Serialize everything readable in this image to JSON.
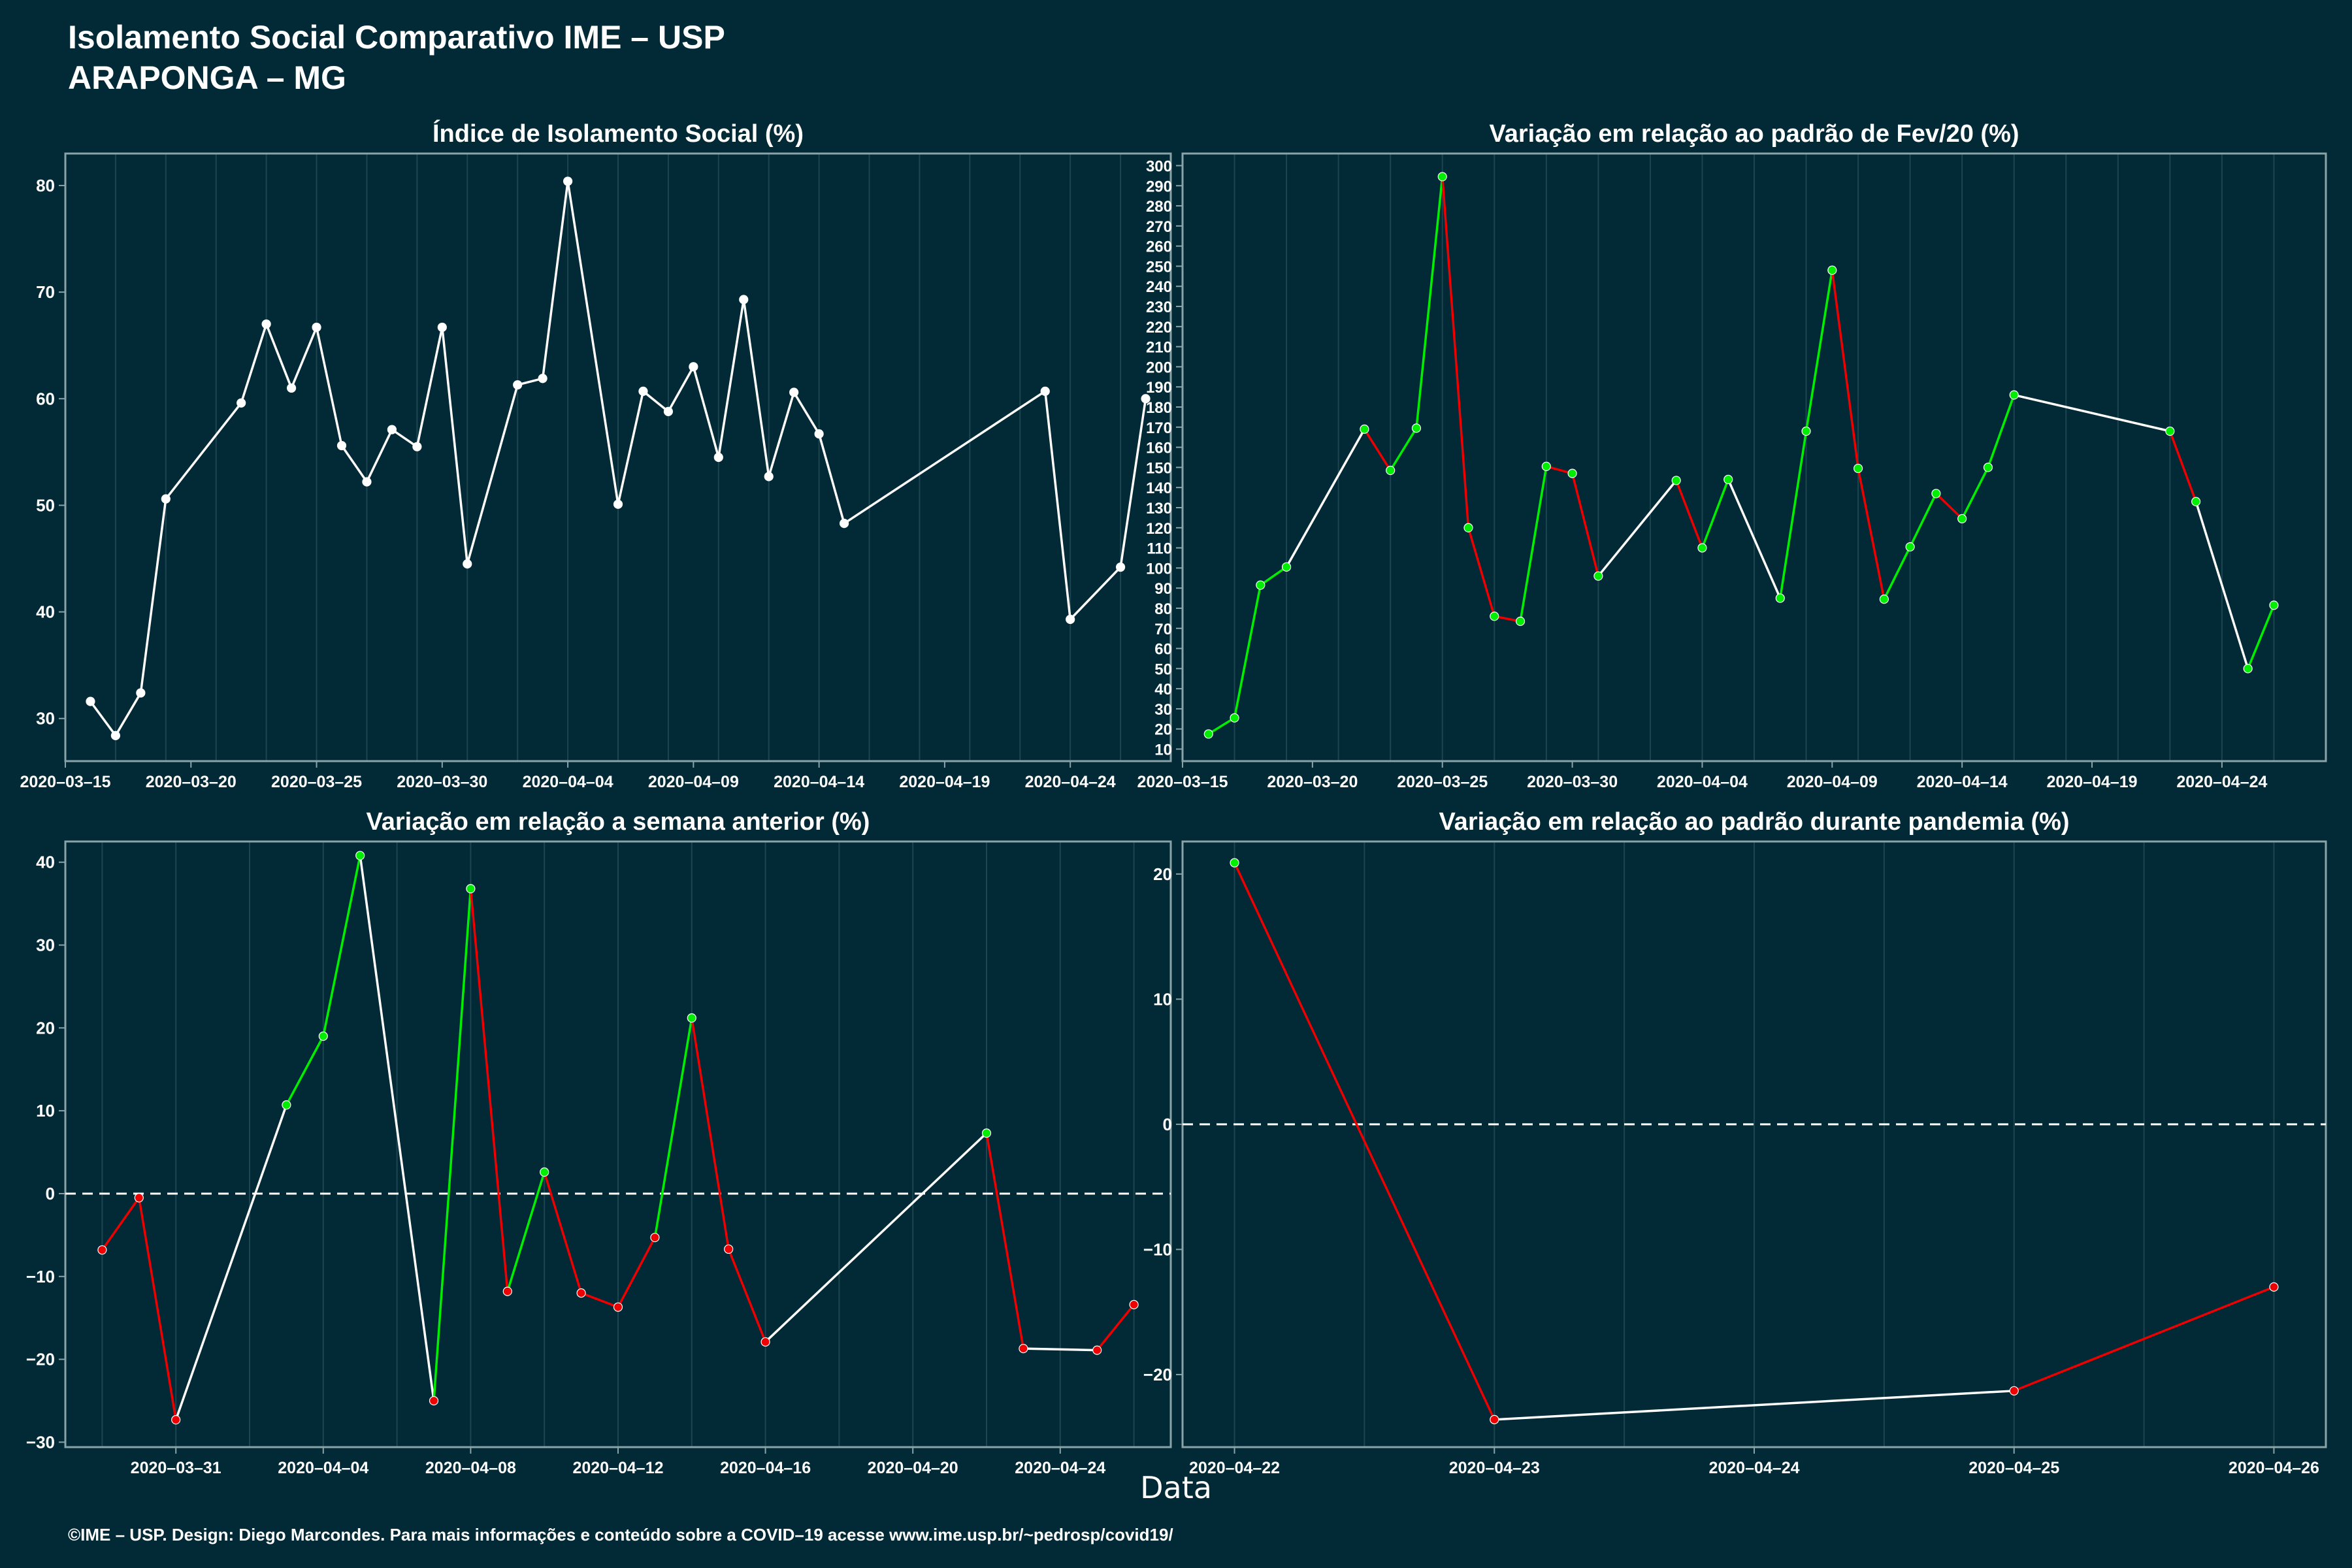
{
  "header": {
    "title": "Isolamento Social Comparativo IME – USP",
    "subtitle": "ARAPONGA – MG"
  },
  "x_axis_label": "Data",
  "footer": "©IME – USP. Design: Diego Marcondes. Para mais informações e conteúdo sobre a COVID–19 acesse www.ime.usp.br/~pedrosp/covid19/",
  "colors": {
    "background": "#012a36",
    "line_default": "#ffffff",
    "increase": "#00ee00",
    "decrease": "#ee0000",
    "axis": "#8aa3a8",
    "grid": "#1d4550"
  },
  "chart_data": [
    {
      "type": "line",
      "title": "Índice de Isolamento Social (%)",
      "date_ticks": [
        "2020-03-15",
        "2020-03-20",
        "2020-03-25",
        "2020-03-30",
        "2020-04-04",
        "2020-04-09",
        "2020-04-14",
        "2020-04-19",
        "2020-04-24"
      ],
      "ylim": [
        26,
        83
      ],
      "yticks": [
        30,
        40,
        50,
        60,
        70,
        80
      ],
      "segment_coloring": "none",
      "points": [
        [
          "2020-03-16",
          31.6
        ],
        [
          "2020-03-17",
          28.4
        ],
        [
          "2020-03-18",
          32.4
        ],
        [
          "2020-03-19",
          50.6
        ],
        [
          "2020-03-22",
          59.6
        ],
        [
          "2020-03-23",
          67.0
        ],
        [
          "2020-03-24",
          61.0
        ],
        [
          "2020-03-25",
          66.7
        ],
        [
          "2020-03-26",
          55.6
        ],
        [
          "2020-03-27",
          52.2
        ],
        [
          "2020-03-28",
          57.1
        ],
        [
          "2020-03-29",
          55.5
        ],
        [
          "2020-03-30",
          66.7
        ],
        [
          "2020-03-31",
          44.5
        ],
        [
          "2020-04-02",
          61.3
        ],
        [
          "2020-04-03",
          61.9
        ],
        [
          "2020-04-04",
          80.4
        ],
        [
          "2020-04-06",
          50.1
        ],
        [
          "2020-04-07",
          60.7
        ],
        [
          "2020-04-08",
          58.8
        ],
        [
          "2020-04-09",
          63.0
        ],
        [
          "2020-04-10",
          54.5
        ],
        [
          "2020-04-11",
          69.3
        ],
        [
          "2020-04-12",
          52.7
        ],
        [
          "2020-04-13",
          60.6
        ],
        [
          "2020-04-14",
          56.7
        ],
        [
          "2020-04-15",
          48.3
        ],
        [
          "2020-04-23",
          60.7
        ],
        [
          "2020-04-24",
          39.3
        ],
        [
          "2020-04-26",
          44.2
        ],
        [
          "2020-04-27",
          60.0
        ]
      ]
    },
    {
      "type": "line",
      "title": "Variação em relação ao padrão de Fev/20 (%)",
      "date_ticks": [
        "2020-03-15",
        "2020-03-20",
        "2020-03-25",
        "2020-03-30",
        "2020-04-04",
        "2020-04-09",
        "2020-04-14",
        "2020-04-19",
        "2020-04-24"
      ],
      "ylim": [
        4,
        306
      ],
      "yticks": [
        10,
        20,
        30,
        40,
        50,
        60,
        70,
        80,
        90,
        100,
        110,
        120,
        130,
        140,
        150,
        160,
        170,
        180,
        190,
        200,
        210,
        220,
        230,
        240,
        250,
        260,
        270,
        280,
        290,
        300
      ],
      "segment_coloring": "change",
      "points": [
        [
          "2020-03-16",
          17.5
        ],
        [
          "2020-03-17",
          25.5
        ],
        [
          "2020-03-18",
          91.5
        ],
        [
          "2020-03-19",
          100.5
        ],
        [
          "2020-03-22",
          169
        ],
        [
          "2020-03-23",
          148.5
        ],
        [
          "2020-03-24",
          169.5
        ],
        [
          "2020-03-25",
          294.5
        ],
        [
          "2020-03-26",
          120
        ],
        [
          "2020-03-27",
          76
        ],
        [
          "2020-03-28",
          73.5
        ],
        [
          "2020-03-29",
          150.5
        ],
        [
          "2020-03-30",
          147
        ],
        [
          "2020-03-31",
          96
        ],
        [
          "2020-04-03",
          143.5
        ],
        [
          "2020-04-04",
          110
        ],
        [
          "2020-04-05",
          144
        ],
        [
          "2020-04-07",
          85
        ],
        [
          "2020-04-08",
          168
        ],
        [
          "2020-04-09",
          248
        ],
        [
          "2020-04-10",
          149.5
        ],
        [
          "2020-04-11",
          84.5
        ],
        [
          "2020-04-12",
          110.5
        ],
        [
          "2020-04-13",
          137
        ],
        [
          "2020-04-14",
          124.5
        ],
        [
          "2020-04-15",
          150
        ],
        [
          "2020-04-16",
          186
        ],
        [
          "2020-04-22",
          168
        ],
        [
          "2020-04-23",
          133
        ],
        [
          "2020-04-25",
          50
        ],
        [
          "2020-04-26",
          81.5
        ]
      ]
    },
    {
      "type": "line",
      "title": "Variação em relação a semana anterior (%)",
      "date_ticks": [
        "2020-03-31",
        "2020-04-04",
        "2020-04-08",
        "2020-04-12",
        "2020-04-16",
        "2020-04-20",
        "2020-04-24"
      ],
      "ylim": [
        -30.6,
        42.5
      ],
      "yticks": [
        -30,
        -20,
        -10,
        0,
        10,
        20,
        30,
        40
      ],
      "zero_line": true,
      "segment_coloring": "sign",
      "points": [
        [
          "2020-03-29",
          -6.8
        ],
        [
          "2020-03-30",
          -0.5
        ],
        [
          "2020-03-31",
          -27.3
        ],
        [
          "2020-04-03",
          10.7
        ],
        [
          "2020-04-04",
          19.0
        ],
        [
          "2020-04-05",
          40.8
        ],
        [
          "2020-04-07",
          -25.0
        ],
        [
          "2020-04-08",
          36.8
        ],
        [
          "2020-04-09",
          -11.8
        ],
        [
          "2020-04-10",
          2.6
        ],
        [
          "2020-04-11",
          -12.0
        ],
        [
          "2020-04-12",
          -13.7
        ],
        [
          "2020-04-13",
          -5.3
        ],
        [
          "2020-04-14",
          21.2
        ],
        [
          "2020-04-15",
          -6.7
        ],
        [
          "2020-04-16",
          -17.9
        ],
        [
          "2020-04-22",
          7.3
        ],
        [
          "2020-04-23",
          -18.7
        ],
        [
          "2020-04-25",
          -18.9
        ],
        [
          "2020-04-26",
          -13.4
        ]
      ]
    },
    {
      "type": "line",
      "title": "Variação em relação ao padrão durante pandemia (%)",
      "date_ticks": [
        "2020-04-22",
        "2020-04-23",
        "2020-04-24",
        "2020-04-25",
        "2020-04-26"
      ],
      "ylim": [
        -25.8,
        22.6
      ],
      "yticks": [
        -20,
        -10,
        0,
        10,
        20
      ],
      "zero_line": true,
      "segment_coloring": "sign",
      "points": [
        [
          "2020-04-22",
          20.9
        ],
        [
          "2020-04-23",
          -23.6
        ],
        [
          "2020-04-25",
          -21.3
        ],
        [
          "2020-04-26",
          -13.0
        ]
      ]
    }
  ]
}
